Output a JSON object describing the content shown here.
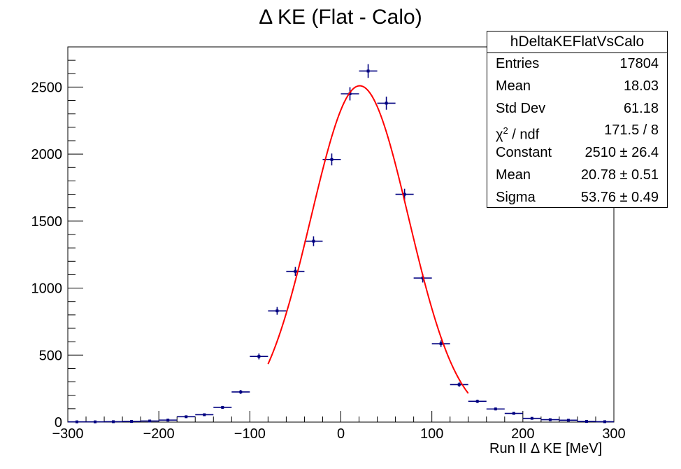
{
  "title": "Δ KE (Flat - Calo)",
  "chart_data": {
    "type": "histogram",
    "xlabel": "Run II Δ KE [MeV]",
    "ylabel": "",
    "xlim": [
      -300,
      300
    ],
    "ylim": [
      0,
      2800
    ],
    "x_ticks": [
      -300,
      -200,
      -100,
      0,
      100,
      200,
      300
    ],
    "x_tick_labels": [
      "−300",
      "−200",
      "−100",
      "0",
      "100",
      "200",
      "300"
    ],
    "y_ticks": [
      0,
      500,
      1000,
      1500,
      2000,
      2500
    ],
    "y_tick_labels": [
      "0",
      "500",
      "1000",
      "1500",
      "2000",
      "2500"
    ],
    "bin_width": 20,
    "series": [
      {
        "marker_color": "#000080",
        "x": [
          -290,
          -270,
          -250,
          -230,
          -210,
          -190,
          -170,
          -150,
          -130,
          -110,
          -90,
          -70,
          -50,
          -30,
          -10,
          10,
          30,
          50,
          70,
          90,
          110,
          130,
          150,
          170,
          190,
          210,
          230,
          250,
          270,
          290
        ],
        "values": [
          2,
          2,
          3,
          5,
          8,
          15,
          40,
          55,
          110,
          225,
          490,
          830,
          1125,
          1350,
          1960,
          2450,
          2620,
          2380,
          1700,
          1075,
          585,
          280,
          155,
          98,
          65,
          28,
          18,
          14,
          5,
          3
        ]
      },
      {
        "name": "fit",
        "kind": "gaussian",
        "color": "#ff0000",
        "constant": 2510,
        "mean": 20.78,
        "sigma": 53.76,
        "range": [
          -80,
          140
        ]
      }
    ],
    "legend": "top-right",
    "stats": {
      "name": "hDeltaKEFlatVsCalo",
      "entries_label": "Entries",
      "entries": "17804",
      "mean_label": "Mean",
      "mean": "18.03",
      "stddev_label": "Std Dev",
      "stddev": "61.18",
      "chi2_label": "χ",
      "chi2_sup": "2",
      "chi2_rest": " / ndf",
      "chi2": "171.5 / 8",
      "const_label": "Constant",
      "const": "2510 ± 26.4",
      "fitmean_label": "Mean",
      "fitmean": "20.78 ± 0.51",
      "sigma_label": "Sigma",
      "sigma": "53.76 ± 0.49"
    }
  }
}
